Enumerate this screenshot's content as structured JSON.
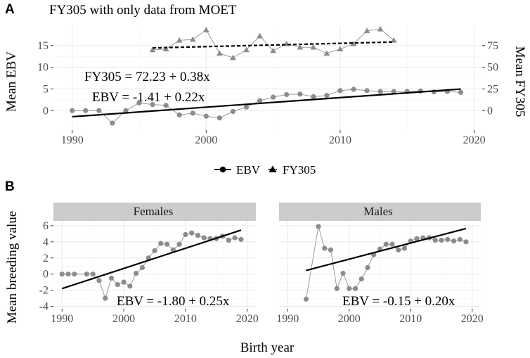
{
  "chart_data": [
    {
      "panel": "A",
      "type": "line",
      "title": "FY305 with only data from MOET",
      "xlabel": "",
      "ylabel": "Mean EBV",
      "ylabel_right": "Mean FY305",
      "xlim": [
        1988.6,
        2020.6
      ],
      "ylim": [
        -4.5,
        19.5
      ],
      "xticks": [
        1990,
        2000,
        2010,
        2020
      ],
      "yticks": [
        0,
        5,
        10,
        15
      ],
      "yticks_right": [
        0,
        25,
        50,
        75
      ],
      "secondary_axis": "FY305 = EBV * 5",
      "series": [
        {
          "name": "EBV",
          "marker": "circle",
          "x": [
            1990,
            1991,
            1992,
            1993,
            1994,
            1995,
            1996,
            1997,
            1998,
            1999,
            2000,
            2001,
            2002,
            2003,
            2004,
            2005,
            2006,
            2007,
            2008,
            2009,
            2010,
            2011,
            2012,
            2013,
            2014,
            2015,
            2016,
            2017,
            2018,
            2019
          ],
          "y": [
            0,
            0,
            0,
            -2.9,
            0,
            1.8,
            1.4,
            1.2,
            -1,
            -0.6,
            -1.3,
            -1.7,
            -0.2,
            0.8,
            2.3,
            3.1,
            3.7,
            3.8,
            3.2,
            3.5,
            4.6,
            4.9,
            4.6,
            4.4,
            4.4,
            4.4,
            4.5,
            4.3,
            4.4,
            4.2
          ]
        },
        {
          "name": "FY305",
          "marker": "triangle",
          "axis": "right",
          "x": [
            1996,
            1997,
            1998,
            1999,
            2000,
            2001,
            2002,
            2003,
            2004,
            2005,
            2006,
            2007,
            2008,
            2009,
            2010,
            2011,
            2012,
            2013,
            2014
          ],
          "y": [
            70,
            71,
            81,
            82,
            93,
            66,
            61,
            70,
            86,
            69,
            77,
            73,
            73,
            66,
            71,
            77,
            92,
            94,
            81
          ]
        }
      ],
      "fits": [
        {
          "name": "EBV",
          "style": "solid",
          "intercept": -1.41,
          "slope": 0.22,
          "x": [
            1990,
            2019
          ]
        },
        {
          "name": "FY305",
          "style": "dashed",
          "intercept": 72.23,
          "slope": 0.38,
          "x": [
            1996,
            2014
          ]
        }
      ],
      "annotations": [
        "FY305 = 72.23 + 0.38x",
        "EBV = -1.41 + 0.22x"
      ],
      "legend": [
        "EBV",
        "FY305"
      ],
      "legend_position": "bottom",
      "grid": true
    },
    {
      "panel": "B",
      "type": "line",
      "xlabel": "Birth year",
      "ylabel": "Mean breeding value",
      "xlim": [
        1988.6,
        2021.4
      ],
      "ylim": [
        -4.3,
        6.6
      ],
      "xticks": [
        1990,
        2000,
        2010,
        2020
      ],
      "yticks": [
        -4,
        -2,
        0,
        2,
        4,
        6
      ],
      "grid": true,
      "facets": [
        {
          "label": "Females",
          "x": [
            1990,
            1991,
            1992,
            1994,
            1995,
            1996,
            1997,
            1998,
            1999,
            2000,
            2001,
            2002,
            2003,
            2004,
            2005,
            2006,
            2007,
            2008,
            2009,
            2010,
            2011,
            2012,
            2013,
            2014,
            2015,
            2016,
            2017,
            2018,
            2019
          ],
          "y": [
            0,
            0,
            0,
            0,
            0,
            -0.8,
            -3,
            -0.5,
            -1.3,
            -1,
            -1.5,
            0.1,
            0.8,
            2,
            2.9,
            3.8,
            3.7,
            3,
            3.7,
            4.9,
            5.1,
            4.8,
            4.5,
            4.4,
            4.4,
            4.7,
            4.2,
            4.5,
            4.3
          ],
          "fit": {
            "intercept": -1.8,
            "slope": 0.25,
            "x": [
              1990,
              2019
            ]
          },
          "annotation": "EBV = -1.80 + 0.25x"
        },
        {
          "label": "Males",
          "x": [
            1993,
            1995,
            1996,
            1997,
            1998,
            1999,
            2000,
            2001,
            2002,
            2003,
            2004,
            2005,
            2006,
            2007,
            2008,
            2009,
            2010,
            2011,
            2012,
            2013,
            2014,
            2015,
            2016,
            2017,
            2018,
            2019
          ],
          "y": [
            -3.1,
            5.9,
            3.2,
            3,
            -1.8,
            0.1,
            -1.8,
            -1.8,
            -0.6,
            0.8,
            2.4,
            3.1,
            3.7,
            3.7,
            3,
            3.2,
            4.1,
            4.4,
            4.5,
            4.5,
            4.2,
            4.2,
            4.3,
            4.1,
            4.3,
            4.0
          ],
          "fit": {
            "intercept": -0.15,
            "slope": 0.2,
            "x": [
              1993,
              2019
            ]
          },
          "annotation": "EBV = -0.15 + 0.20x"
        }
      ]
    }
  ],
  "colors": {
    "points": "#8c8c8c",
    "connector": "#9a9a9a",
    "fit": "#000000",
    "strip": "#cccccc",
    "grid": "#ebebeb",
    "axis_text": "#4d4d4d"
  }
}
